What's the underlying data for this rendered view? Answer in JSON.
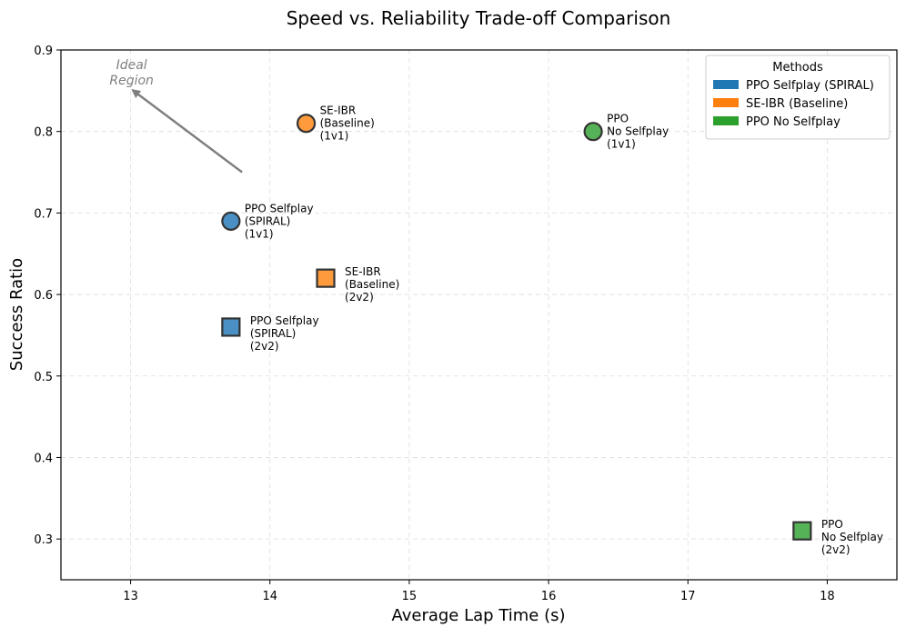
{
  "chart_data": {
    "type": "scatter",
    "title": "Speed vs. Reliability Trade-off Comparison",
    "xlabel": "Average Lap Time (s)",
    "ylabel": "Success Ratio",
    "xlim": [
      12.5,
      18.5
    ],
    "ylim": [
      0.25,
      0.9
    ],
    "xticks": [
      13,
      14,
      15,
      16,
      17,
      18
    ],
    "yticks": [
      0.3,
      0.4,
      0.5,
      0.6,
      0.7,
      0.8,
      0.9
    ],
    "grid": true,
    "legend": {
      "title": "Methods",
      "placement": "top-right",
      "entries": [
        {
          "label": "PPO Selfplay (SPIRAL)",
          "color": "#1f77b4"
        },
        {
          "label": "SE-IBR (Baseline)",
          "color": "#ff7f0e"
        },
        {
          "label": "PPO No Selfplay",
          "color": "#2ca02c"
        }
      ]
    },
    "points": [
      {
        "x": 13.72,
        "y": 0.69,
        "method": "PPO Selfplay (SPIRAL)",
        "mode": "1v1",
        "marker": "circle",
        "color": "#4a90c4",
        "label": [
          "PPO Selfplay",
          "(SPIRAL)",
          "(1v1)"
        ]
      },
      {
        "x": 13.72,
        "y": 0.56,
        "method": "PPO Selfplay (SPIRAL)",
        "mode": "2v2",
        "marker": "square",
        "color": "#4a90c4",
        "label": [
          "PPO Selfplay",
          "(SPIRAL)",
          "(2v2)"
        ]
      },
      {
        "x": 14.26,
        "y": 0.81,
        "method": "SE-IBR (Baseline)",
        "mode": "1v1",
        "marker": "circle",
        "color": "#ff9a3d",
        "label": [
          "SE-IBR",
          "(Baseline)",
          "(1v1)"
        ]
      },
      {
        "x": 14.4,
        "y": 0.62,
        "method": "SE-IBR (Baseline)",
        "mode": "2v2",
        "marker": "square",
        "color": "#ff9a3d",
        "label": [
          "SE-IBR",
          "(Baseline)",
          "(2v2)"
        ]
      },
      {
        "x": 16.32,
        "y": 0.8,
        "method": "PPO No Selfplay",
        "mode": "1v1",
        "marker": "circle",
        "color": "#56b256",
        "label": [
          "PPO",
          "No Selfplay",
          "(1v1)"
        ]
      },
      {
        "x": 17.82,
        "y": 0.31,
        "method": "PPO No Selfplay",
        "mode": "2v2",
        "marker": "square",
        "color": "#56b256",
        "label": [
          "PPO",
          "No Selfplay",
          "(2v2)"
        ]
      }
    ],
    "annotation": {
      "text": [
        "Ideal",
        "Region"
      ],
      "arrow_from": [
        13.8,
        0.75
      ],
      "arrow_to": [
        13.02,
        0.85
      ]
    }
  }
}
